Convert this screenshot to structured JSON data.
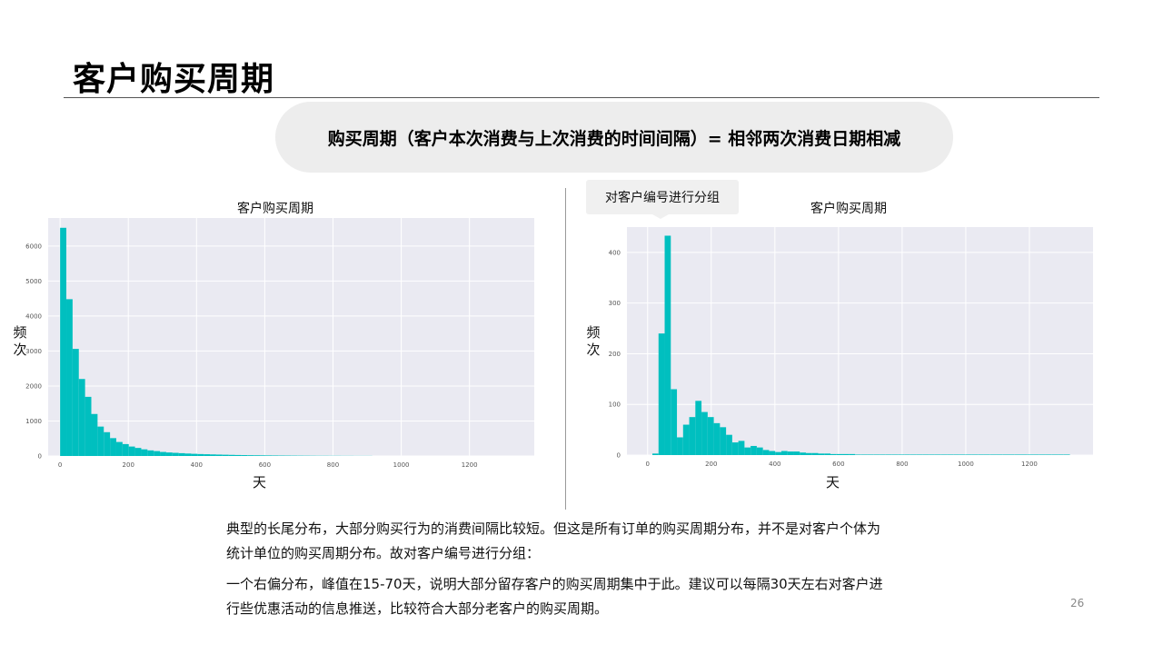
{
  "page": {
    "title": "客户购买周期",
    "formula": "购买周期（客户本次消费与上次消费的时间间隔）= 相邻两次消费日期相减",
    "callout": "对客户编号进行分组",
    "paragraph1_line1": "典型的长尾分布，大部分购买行为的消费间隔比较短。但这是所有订单的购买周期分布，并不是对客户个体为",
    "paragraph1_line2": "统计单位的购买周期分布。故对客户编号进行分组：",
    "paragraph2_line1": "一个右偏分布，峰值在15-70天，说明大部分留存客户的购买周期集中于此。建议可以每隔30天左右对客户进",
    "paragraph2_line2": "行些优惠活动的信息推送，比较符合大部分老客户的购买周期。",
    "page_number": "26"
  },
  "colors": {
    "bar": "#00bfbf",
    "plot_bg": "#eaeaf2",
    "grid": "#ffffff",
    "tick_text": "#555555"
  },
  "chart_data": [
    {
      "type": "bar",
      "title": "客户购买周期",
      "xlabel": "天",
      "ylabel": "频次",
      "xlim": [
        -35,
        1390
      ],
      "ylim": [
        0,
        6800
      ],
      "xticks": [
        0,
        200,
        400,
        600,
        800,
        1000,
        1200
      ],
      "yticks": [
        0,
        1000,
        2000,
        3000,
        4000,
        5000,
        6000
      ],
      "bin_start": 0,
      "bin_width": 18.3,
      "values": [
        6520,
        4480,
        3060,
        2200,
        1690,
        1200,
        840,
        680,
        510,
        400,
        340,
        270,
        230,
        190,
        160,
        140,
        115,
        100,
        90,
        80,
        70,
        62,
        55,
        50,
        45,
        40,
        36,
        32,
        28,
        25,
        22,
        20,
        18,
        16,
        14,
        12,
        11,
        10,
        9,
        8,
        7,
        6,
        6,
        5,
        5,
        4,
        4,
        3,
        3,
        3
      ],
      "grid": true
    },
    {
      "type": "bar",
      "title": "客户购买周期",
      "xlabel": "天",
      "ylabel": "频次",
      "xlim": [
        -65,
        1400
      ],
      "ylim": [
        0,
        450
      ],
      "xticks": [
        0,
        200,
        400,
        600,
        800,
        1000,
        1200
      ],
      "yticks": [
        0,
        100,
        200,
        300,
        400
      ],
      "bin_start": 15,
      "bin_width": 19.3,
      "values": [
        3,
        240,
        433,
        130,
        35,
        60,
        75,
        107,
        85,
        75,
        63,
        55,
        40,
        25,
        28,
        15,
        18,
        15,
        10,
        8,
        6,
        8,
        7,
        7,
        5,
        4,
        4,
        3,
        3,
        2,
        2,
        2,
        2,
        1,
        1,
        1,
        1,
        1,
        1,
        1,
        1,
        1,
        1,
        1,
        1,
        1,
        1,
        1,
        1,
        1,
        1,
        1,
        1,
        1,
        1,
        1,
        1,
        1,
        1,
        1,
        1,
        1,
        1,
        1,
        1,
        1,
        1,
        1
      ],
      "grid": true
    }
  ]
}
